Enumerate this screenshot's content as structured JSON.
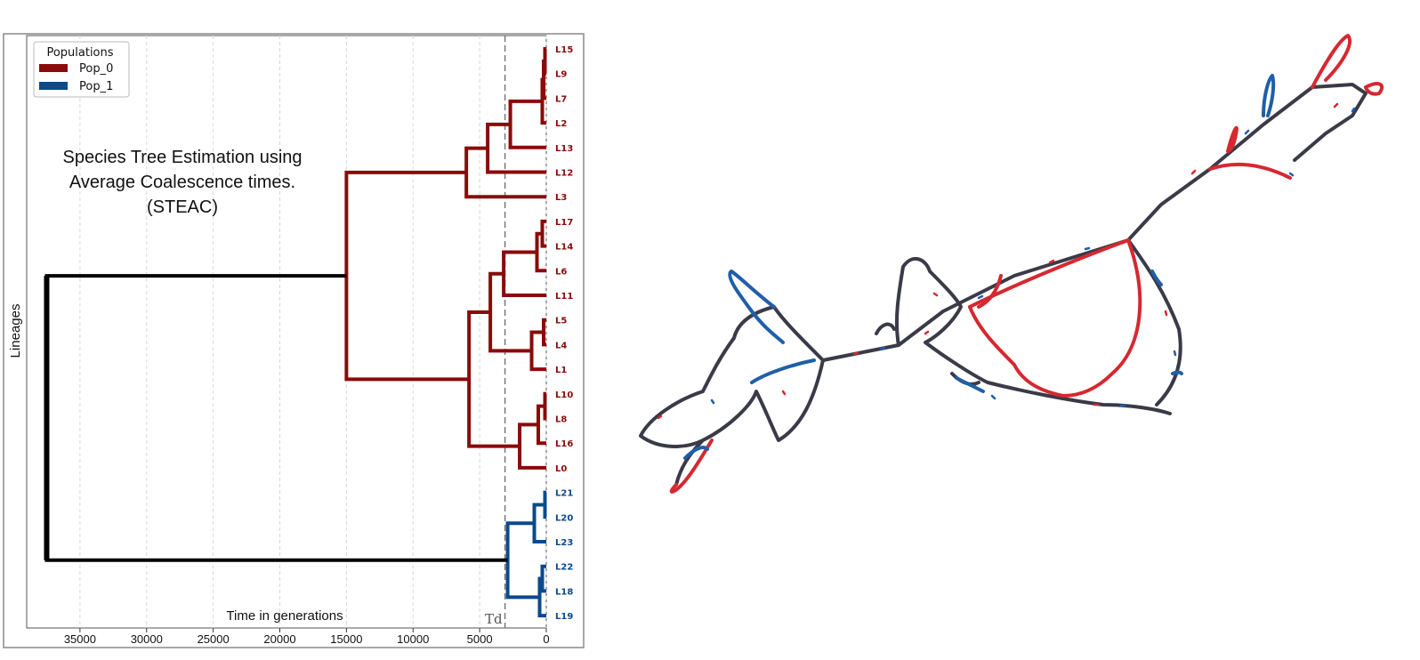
{
  "chart_data": {
    "type": "dendrogram",
    "title": "",
    "annotation_lines": [
      "Species Tree Estimation using",
      "Average Coalescence times.",
      "(STEAC)"
    ],
    "xlabel": "Time in generations",
    "ylabel": "Lineages",
    "x_ticks": [
      35000,
      30000,
      25000,
      20000,
      15000,
      10000,
      5000,
      0
    ],
    "x_tick_labels": [
      "35000",
      "30000",
      "25000",
      "20000",
      "15000",
      "10000",
      "5000",
      "0"
    ],
    "xlim": [
      39000,
      0
    ],
    "td_label": "Td",
    "td_value": 3100,
    "legend": {
      "title": "Populations",
      "entries": [
        {
          "name": "Pop_0",
          "color": "#8b0a0a"
        },
        {
          "name": "Pop_1",
          "color": "#0a4a8c"
        }
      ],
      "position": "top-left"
    },
    "leaves": [
      {
        "label": "L15",
        "pop": "Pop_0"
      },
      {
        "label": "L9",
        "pop": "Pop_0"
      },
      {
        "label": "L7",
        "pop": "Pop_0"
      },
      {
        "label": "L2",
        "pop": "Pop_0"
      },
      {
        "label": "L13",
        "pop": "Pop_0"
      },
      {
        "label": "L12",
        "pop": "Pop_0"
      },
      {
        "label": "L3",
        "pop": "Pop_0"
      },
      {
        "label": "L17",
        "pop": "Pop_0"
      },
      {
        "label": "L14",
        "pop": "Pop_0"
      },
      {
        "label": "L6",
        "pop": "Pop_0"
      },
      {
        "label": "L11",
        "pop": "Pop_0"
      },
      {
        "label": "L5",
        "pop": "Pop_0"
      },
      {
        "label": "L4",
        "pop": "Pop_0"
      },
      {
        "label": "L1",
        "pop": "Pop_0"
      },
      {
        "label": "L10",
        "pop": "Pop_0"
      },
      {
        "label": "L8",
        "pop": "Pop_0"
      },
      {
        "label": "L16",
        "pop": "Pop_0"
      },
      {
        "label": "L0",
        "pop": "Pop_0"
      },
      {
        "label": "L21",
        "pop": "Pop_1"
      },
      {
        "label": "L20",
        "pop": "Pop_1"
      },
      {
        "label": "L23",
        "pop": "Pop_1"
      },
      {
        "label": "L22",
        "pop": "Pop_1"
      },
      {
        "label": "L18",
        "pop": "Pop_1"
      },
      {
        "label": "L19",
        "pop": "Pop_1"
      }
    ],
    "merges": [
      {
        "id": "a1",
        "children": [
          "L15",
          "L9"
        ],
        "time": 100
      },
      {
        "id": "a2",
        "children": [
          "a1",
          "L7"
        ],
        "time": 200
      },
      {
        "id": "a3",
        "children": [
          "a2",
          "L2"
        ],
        "time": 300
      },
      {
        "id": "a4",
        "children": [
          "a3",
          "L13"
        ],
        "time": 2700
      },
      {
        "id": "a5",
        "children": [
          "a4",
          "L12"
        ],
        "time": 4400
      },
      {
        "id": "a6",
        "children": [
          "a5",
          "L3"
        ],
        "time": 6000
      },
      {
        "id": "b1",
        "children": [
          "L17",
          "L14"
        ],
        "time": 300
      },
      {
        "id": "b2",
        "children": [
          "b1",
          "L6"
        ],
        "time": 700
      },
      {
        "id": "b3",
        "children": [
          "b2",
          "L11"
        ],
        "time": 3200
      },
      {
        "id": "c1",
        "children": [
          "L5",
          "L4"
        ],
        "time": 200
      },
      {
        "id": "c2",
        "children": [
          "c1",
          "L1"
        ],
        "time": 1100
      },
      {
        "id": "d1",
        "children": [
          "L10",
          "L8"
        ],
        "time": 100
      },
      {
        "id": "d2",
        "children": [
          "d1",
          "L16"
        ],
        "time": 600
      },
      {
        "id": "d3",
        "children": [
          "d2",
          "L0"
        ],
        "time": 2000
      },
      {
        "id": "e1",
        "children": [
          "b3",
          "c2"
        ],
        "time": 4200
      },
      {
        "id": "e2",
        "children": [
          "e1",
          "d3"
        ],
        "time": 5800
      },
      {
        "id": "f1",
        "children": [
          "a6",
          "e2"
        ],
        "time": 15000
      },
      {
        "id": "p1",
        "children": [
          "L21",
          "L20"
        ],
        "time": 100
      },
      {
        "id": "p2",
        "children": [
          "p1",
          "L23"
        ],
        "time": 900
      },
      {
        "id": "q1",
        "children": [
          "L22",
          "L18"
        ],
        "time": 300
      },
      {
        "id": "q2",
        "children": [
          "q1",
          "L19"
        ],
        "time": 500
      },
      {
        "id": "r1",
        "children": [
          "p2",
          "q2"
        ],
        "time": 2900
      },
      {
        "id": "root",
        "children": [
          "f1",
          "r1"
        ],
        "time": 37500
      }
    ]
  },
  "network": {
    "description_colors": {
      "pop0": "#d62830",
      "pop1": "#1f5fa8",
      "shared": "#3a3a48"
    }
  }
}
